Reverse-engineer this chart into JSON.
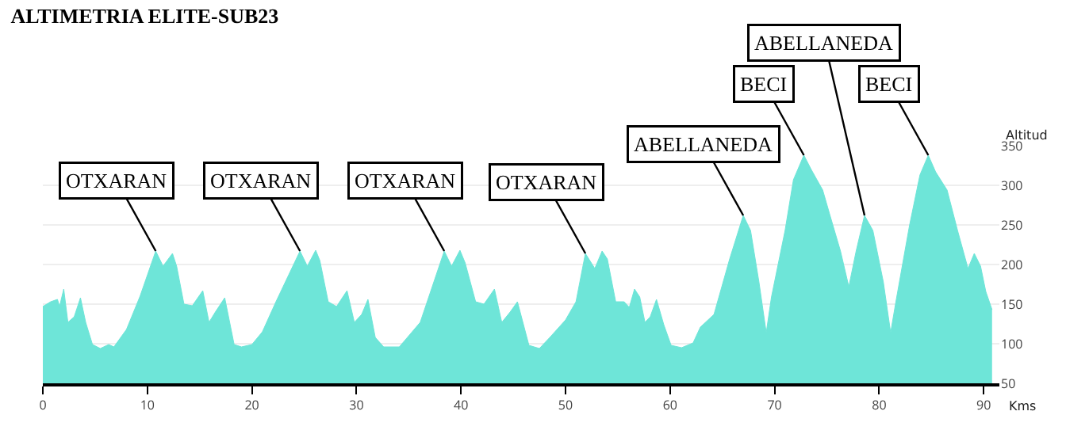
{
  "chart_data": {
    "type": "area",
    "title": "ALTIMETRIA ELITE-SUB23",
    "xlabel": "Kms",
    "ylabel": "Altitud",
    "x": [
      0,
      0.75,
      1.4,
      1.6,
      2.0,
      2.4,
      3.0,
      3.6,
      4.1,
      4.75,
      5.5,
      6.3,
      6.8,
      8.0,
      9.3,
      10.8,
      11.5,
      12.4,
      12.8,
      13.5,
      14.3,
      15.3,
      15.9,
      16.5,
      17.4,
      18.3,
      19.0,
      20.0,
      21.0,
      22.3,
      24.6,
      25.3,
      26.1,
      26.5,
      27.3,
      28.1,
      29.1,
      29.8,
      30.5,
      31.1,
      31.8,
      32.6,
      34.1,
      36.1,
      38.4,
      39.1,
      39.9,
      40.4,
      41.4,
      42.2,
      43.2,
      43.9,
      44.7,
      45.4,
      46.5,
      47.5,
      48.5,
      50,
      51,
      51.9,
      52.8,
      53.5,
      54,
      54.8,
      55.6,
      56.1,
      56.6,
      57.1,
      57.6,
      58.1,
      58.7,
      59.4,
      60.1,
      61.1,
      62.2,
      62.9,
      64.2,
      65.7,
      67,
      67.7,
      68.5,
      69.2,
      69.7,
      71,
      71.8,
      72.8,
      73.5,
      74.6,
      75.3,
      76.3,
      77.1,
      77.8,
      78.6,
      79.4,
      80.4,
      81.1,
      81.6,
      82.9,
      83.9,
      84.7,
      85.4,
      86.5,
      87.5,
      88.5,
      89.1,
      89.7,
      90.2,
      90.8
    ],
    "series": [
      {
        "color": "#6ee5d8",
        "values": [
          147,
          153,
          156,
          147,
          169,
          127,
          134,
          158,
          127,
          99,
          94,
          99,
          96,
          118,
          160,
          217,
          198,
          214,
          198,
          150,
          148,
          167,
          127,
          140,
          158,
          99,
          96,
          99,
          115,
          153,
          217,
          198,
          218,
          205,
          153,
          147,
          167,
          127,
          137,
          156,
          108,
          96,
          96,
          127,
          217,
          198,
          218,
          202,
          153,
          150,
          169,
          127,
          140,
          153,
          98,
          94,
          108,
          130,
          153,
          214,
          195,
          217,
          207,
          153,
          153,
          146,
          169,
          159,
          127,
          134,
          156,
          124,
          98,
          95,
          101,
          121,
          137,
          207,
          262,
          243,
          178,
          114,
          159,
          243,
          307,
          338,
          320,
          294,
          262,
          217,
          172,
          217,
          262,
          243,
          178,
          114,
          153,
          249,
          313,
          338,
          317,
          294,
          243,
          195,
          214,
          198,
          166,
          143
        ]
      }
    ],
    "xlim": [
      0,
      91.5
    ],
    "ylim": [
      50,
      350
    ],
    "xticks": [
      0,
      10,
      20,
      30,
      40,
      50,
      60,
      70,
      80,
      90
    ],
    "yticks": [
      50,
      100,
      150,
      200,
      250,
      300,
      350
    ],
    "grid": "y",
    "legend": false,
    "annotations": [
      {
        "text": "OTXARAN",
        "x": 10.8,
        "y": 217
      },
      {
        "text": "OTXARAN",
        "x": 24.6,
        "y": 217
      },
      {
        "text": "OTXARAN",
        "x": 38.4,
        "y": 217
      },
      {
        "text": "OTXARAN",
        "x": 51.9,
        "y": 214
      },
      {
        "text": "ABELLANEDA",
        "x": 67,
        "y": 262
      },
      {
        "text": "BECI",
        "x": 72.8,
        "y": 338
      },
      {
        "text": "ABELLANEDA",
        "x": 78.6,
        "y": 262
      },
      {
        "text": "BECI",
        "x": 84.7,
        "y": 338
      }
    ]
  }
}
